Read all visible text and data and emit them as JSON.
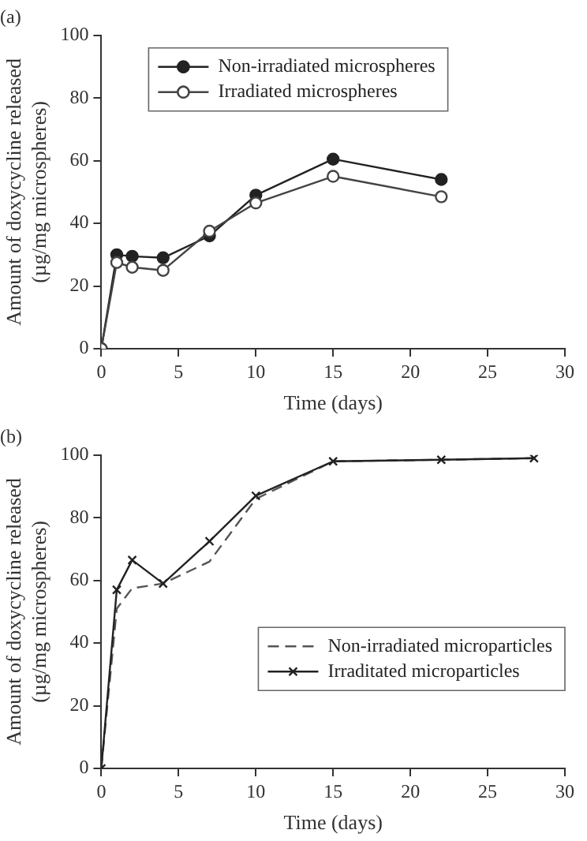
{
  "chart_data": [
    {
      "type": "line",
      "title": "(a)",
      "xlabel": "Time (days)",
      "ylabel": "Amount of doxycycline released\n(µg/mg microspheres)",
      "x": [
        0,
        1,
        2,
        4,
        7,
        10,
        15,
        22
      ],
      "xlim": [
        0,
        30
      ],
      "xticks": [
        0,
        5,
        10,
        15,
        20,
        25,
        30
      ],
      "ylim": [
        0,
        100
      ],
      "yticks": [
        0,
        20,
        40,
        60,
        80,
        100
      ],
      "grid": false,
      "legend": "top",
      "series": [
        {
          "name": "Non-irradiated microspheres",
          "color": "#222222",
          "marker": "circle",
          "values": [
            0,
            30,
            29.5,
            29,
            36,
            49,
            60.5,
            54
          ]
        },
        {
          "name": "Irradiated microspheres",
          "color": "#444444",
          "marker": "circle",
          "values": [
            0,
            27.5,
            26,
            25,
            37.5,
            46.5,
            55,
            48.5
          ]
        }
      ]
    },
    {
      "type": "line",
      "title": "(b)",
      "xlabel": "Time (days)",
      "ylabel": "Amount of doxycycline released\n(µg/mg microspheres)",
      "x": [
        0,
        1,
        2,
        4,
        7,
        10,
        15,
        22,
        28
      ],
      "xlim": [
        0,
        30
      ],
      "xticks": [
        0,
        5,
        10,
        15,
        20,
        25,
        30
      ],
      "ylim": [
        0,
        100
      ],
      "yticks": [
        0,
        20,
        40,
        60,
        80,
        100
      ],
      "grid": false,
      "legend": "right",
      "series": [
        {
          "name": "Non-irradiated microparticles",
          "color": "#555555",
          "marker": "none",
          "line_style": "dashed",
          "values": [
            0,
            51,
            57.5,
            59,
            66,
            86,
            98,
            98.5,
            99
          ]
        },
        {
          "name": "Irraditated microparticles",
          "color": "#222222",
          "marker": "cross",
          "line_style": "solid",
          "values": [
            0,
            57,
            66.5,
            59,
            72.5,
            87,
            98,
            98.5,
            99
          ]
        }
      ]
    }
  ]
}
